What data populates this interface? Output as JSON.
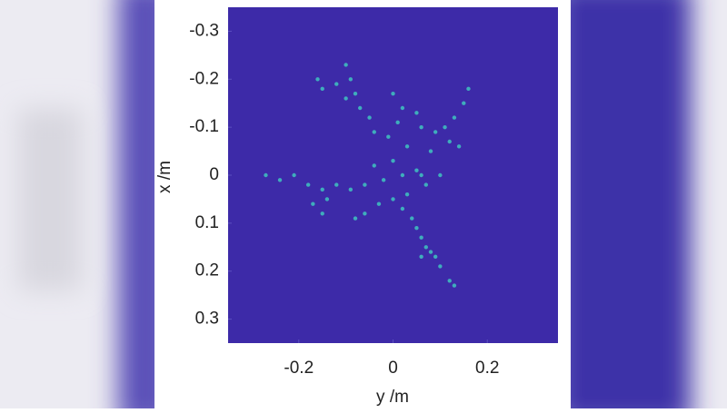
{
  "chart_data": {
    "type": "scatter",
    "xlabel": "y /m",
    "ylabel": "x /m",
    "xlim": [
      -0.35,
      0.35
    ],
    "ylim": [
      -0.35,
      0.35
    ],
    "y_direction": "reverse",
    "xticks": [
      -0.2,
      0,
      0.2
    ],
    "yticks": [
      -0.3,
      -0.2,
      -0.1,
      0,
      0.1,
      0.2,
      0.3
    ],
    "plot_background": "#3d2aa8",
    "series": [
      {
        "color": "#3fc4c0",
        "x": [
          -0.16,
          -0.15,
          -0.12,
          -0.1,
          -0.09,
          -0.08,
          -0.07,
          -0.05,
          -0.1,
          -0.04,
          0.0,
          0.02,
          0.01,
          -0.01,
          0.03,
          0.16,
          0.15,
          0.13,
          0.11,
          0.09,
          0.06,
          0.12,
          0.14,
          0.08,
          0.05,
          0.0,
          0.02,
          -0.02,
          0.05,
          0.07,
          -0.04,
          0.03,
          0.0,
          -0.03,
          0.06,
          0.1,
          -0.27,
          -0.24,
          -0.21,
          -0.18,
          -0.15,
          -0.12,
          -0.09,
          -0.06,
          -0.17,
          -0.15,
          -0.14,
          -0.08,
          -0.06,
          0.02,
          0.04,
          0.05,
          0.06,
          0.07,
          0.08,
          0.06,
          0.09,
          0.1,
          0.12,
          0.13
        ],
        "values": [
          -0.2,
          -0.18,
          -0.19,
          -0.23,
          -0.2,
          -0.17,
          -0.14,
          -0.12,
          -0.16,
          -0.09,
          -0.17,
          -0.14,
          -0.11,
          -0.08,
          -0.06,
          -0.18,
          -0.15,
          -0.12,
          -0.1,
          -0.09,
          -0.1,
          -0.07,
          -0.06,
          -0.05,
          -0.13,
          -0.03,
          0.0,
          0.01,
          -0.01,
          0.02,
          -0.02,
          0.04,
          0.05,
          0.06,
          0.0,
          0.0,
          0.0,
          0.01,
          0.0,
          0.02,
          0.03,
          0.02,
          0.03,
          0.02,
          0.06,
          0.08,
          0.05,
          0.09,
          0.08,
          0.07,
          0.09,
          0.11,
          0.13,
          0.15,
          0.16,
          0.17,
          0.17,
          0.19,
          0.22,
          0.23
        ]
      }
    ]
  }
}
